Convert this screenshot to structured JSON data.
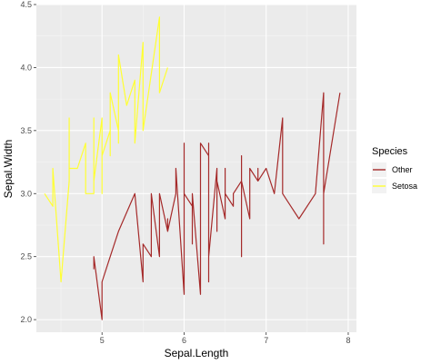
{
  "chart_data": {
    "type": "line",
    "title": "",
    "xlabel": "Sepal.Length",
    "ylabel": "Sepal.Width",
    "xlim": [
      4.2,
      8.1
    ],
    "ylim": [
      1.9,
      4.5
    ],
    "x_ticks": [
      5,
      6,
      7,
      8
    ],
    "y_ticks": [
      2.0,
      2.5,
      3.0,
      3.5,
      4.0,
      4.5
    ],
    "grid": true,
    "legend": {
      "title": "Species",
      "placement": "right"
    },
    "series": [
      {
        "name": "Other",
        "color": "#a52a2a",
        "points": [
          [
            4.9,
            2.4
          ],
          [
            4.9,
            2.5
          ],
          [
            5.0,
            2.0
          ],
          [
            5.0,
            2.3
          ],
          [
            5.1,
            2.5
          ],
          [
            5.2,
            2.7
          ],
          [
            5.4,
            3.0
          ],
          [
            5.5,
            2.3
          ],
          [
            5.5,
            2.4
          ],
          [
            5.5,
            2.4
          ],
          [
            5.5,
            2.5
          ],
          [
            5.5,
            2.6
          ],
          [
            5.6,
            2.5
          ],
          [
            5.6,
            2.7
          ],
          [
            5.6,
            2.8
          ],
          [
            5.6,
            2.9
          ],
          [
            5.6,
            3.0
          ],
          [
            5.7,
            2.5
          ],
          [
            5.7,
            2.6
          ],
          [
            5.7,
            2.8
          ],
          [
            5.7,
            2.9
          ],
          [
            5.7,
            3.0
          ],
          [
            5.8,
            2.7
          ],
          [
            5.8,
            2.8
          ],
          [
            5.8,
            2.7
          ],
          [
            5.8,
            2.7
          ],
          [
            5.9,
            3.0
          ],
          [
            5.9,
            3.2
          ],
          [
            6.0,
            2.2
          ],
          [
            6.0,
            2.9
          ],
          [
            6.0,
            2.7
          ],
          [
            6.0,
            2.2
          ],
          [
            6.0,
            3.4
          ],
          [
            6.0,
            3.0
          ],
          [
            6.1,
            2.9
          ],
          [
            6.1,
            2.8
          ],
          [
            6.1,
            2.8
          ],
          [
            6.1,
            3.0
          ],
          [
            6.1,
            2.6
          ],
          [
            6.1,
            3.0
          ],
          [
            6.2,
            2.2
          ],
          [
            6.2,
            2.9
          ],
          [
            6.2,
            2.8
          ],
          [
            6.2,
            3.4
          ],
          [
            6.3,
            3.3
          ],
          [
            6.3,
            2.5
          ],
          [
            6.3,
            2.3
          ],
          [
            6.3,
            2.5
          ],
          [
            6.3,
            2.9
          ],
          [
            6.3,
            2.7
          ],
          [
            6.3,
            2.8
          ],
          [
            6.3,
            3.4
          ],
          [
            6.3,
            2.5
          ],
          [
            6.4,
            3.2
          ],
          [
            6.4,
            2.9
          ],
          [
            6.4,
            2.7
          ],
          [
            6.4,
            2.8
          ],
          [
            6.4,
            3.2
          ],
          [
            6.4,
            2.8
          ],
          [
            6.4,
            3.1
          ],
          [
            6.5,
            2.8
          ],
          [
            6.5,
            3.0
          ],
          [
            6.5,
            3.2
          ],
          [
            6.5,
            3.0
          ],
          [
            6.5,
            3.0
          ],
          [
            6.6,
            2.9
          ],
          [
            6.6,
            3.0
          ],
          [
            6.7,
            3.1
          ],
          [
            6.7,
            3.0
          ],
          [
            6.7,
            3.1
          ],
          [
            6.7,
            2.5
          ],
          [
            6.7,
            3.3
          ],
          [
            6.7,
            3.0
          ],
          [
            6.7,
            3.3
          ],
          [
            6.7,
            3.1
          ],
          [
            6.8,
            2.8
          ],
          [
            6.8,
            3.0
          ],
          [
            6.8,
            3.2
          ],
          [
            6.9,
            3.1
          ],
          [
            6.9,
            3.2
          ],
          [
            6.9,
            3.1
          ],
          [
            6.9,
            3.1
          ],
          [
            7.0,
            3.2
          ],
          [
            7.1,
            3.0
          ],
          [
            7.2,
            3.6
          ],
          [
            7.2,
            3.2
          ],
          [
            7.2,
            3.0
          ],
          [
            7.3,
            2.9
          ],
          [
            7.4,
            2.8
          ],
          [
            7.6,
            3.0
          ],
          [
            7.7,
            3.8
          ],
          [
            7.7,
            2.6
          ],
          [
            7.7,
            2.8
          ],
          [
            7.7,
            3.0
          ],
          [
            7.9,
            3.8
          ]
        ]
      },
      {
        "name": "Setosa",
        "color": "#ffff33",
        "points": [
          [
            4.3,
            3.0
          ],
          [
            4.4,
            2.9
          ],
          [
            4.4,
            3.0
          ],
          [
            4.4,
            3.2
          ],
          [
            4.5,
            2.3
          ],
          [
            4.6,
            3.1
          ],
          [
            4.6,
            3.4
          ],
          [
            4.6,
            3.6
          ],
          [
            4.6,
            3.2
          ],
          [
            4.7,
            3.2
          ],
          [
            4.7,
            3.2
          ],
          [
            4.8,
            3.4
          ],
          [
            4.8,
            3.0
          ],
          [
            4.8,
            3.4
          ],
          [
            4.8,
            3.1
          ],
          [
            4.8,
            3.0
          ],
          [
            4.9,
            3.0
          ],
          [
            4.9,
            3.1
          ],
          [
            4.9,
            3.6
          ],
          [
            4.9,
            3.1
          ],
          [
            5.0,
            3.6
          ],
          [
            5.0,
            3.4
          ],
          [
            5.0,
            3.0
          ],
          [
            5.0,
            3.4
          ],
          [
            5.0,
            3.2
          ],
          [
            5.0,
            3.5
          ],
          [
            5.0,
            3.3
          ],
          [
            5.1,
            3.5
          ],
          [
            5.1,
            3.5
          ],
          [
            5.1,
            3.8
          ],
          [
            5.1,
            3.7
          ],
          [
            5.1,
            3.3
          ],
          [
            5.1,
            3.4
          ],
          [
            5.1,
            3.8
          ],
          [
            5.1,
            3.8
          ],
          [
            5.2,
            3.5
          ],
          [
            5.2,
            3.4
          ],
          [
            5.2,
            4.1
          ],
          [
            5.3,
            3.7
          ],
          [
            5.4,
            3.9
          ],
          [
            5.4,
            3.7
          ],
          [
            5.4,
            3.9
          ],
          [
            5.4,
            3.4
          ],
          [
            5.4,
            3.4
          ],
          [
            5.5,
            4.2
          ],
          [
            5.5,
            3.5
          ],
          [
            5.7,
            4.4
          ],
          [
            5.7,
            3.8
          ],
          [
            5.8,
            4.0
          ]
        ]
      }
    ]
  }
}
